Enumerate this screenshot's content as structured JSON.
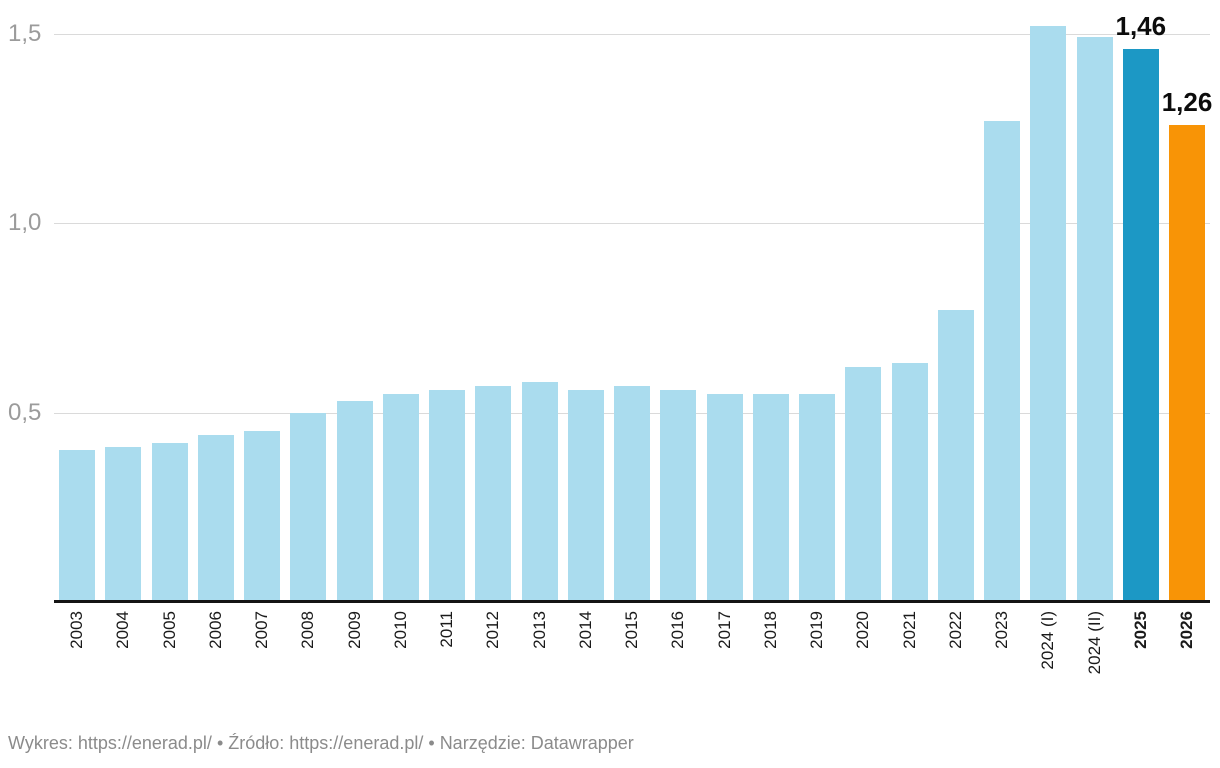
{
  "chart_data": {
    "type": "bar",
    "title": "",
    "xlabel": "",
    "ylabel": "",
    "categories": [
      "2003",
      "2004",
      "2005",
      "2006",
      "2007",
      "2008",
      "2009",
      "2010",
      "2011",
      "2012",
      "2013",
      "2014",
      "2015",
      "2016",
      "2017",
      "2018",
      "2019",
      "2020",
      "2021",
      "2022",
      "2023",
      "2024 (I)",
      "2024 (II)",
      "2025",
      "2026"
    ],
    "values": [
      0.4,
      0.41,
      0.42,
      0.44,
      0.45,
      0.5,
      0.53,
      0.55,
      0.56,
      0.57,
      0.58,
      0.56,
      0.57,
      0.56,
      0.55,
      0.55,
      0.55,
      0.62,
      0.63,
      0.77,
      1.27,
      1.52,
      1.49,
      1.46,
      1.26
    ],
    "y_ticks": [
      {
        "value": 0.5,
        "label": "0,5"
      },
      {
        "value": 1.0,
        "label": "1,0"
      },
      {
        "value": 1.5,
        "label": "1,5"
      }
    ],
    "ylim": [
      0,
      1.59
    ],
    "grid": true,
    "legend": "none",
    "default_bar_color": "#aadcee",
    "bar_color_overrides": {
      "2025": "#1c98c5",
      "2026": "#f89406"
    },
    "bold_categories": [
      "2025",
      "2026"
    ],
    "value_labels": [
      {
        "category": "2025",
        "text": "1,46"
      },
      {
        "category": "2026",
        "text": "1,26"
      }
    ]
  },
  "colors": {
    "background": "#ffffff",
    "gridline": "#dadada",
    "axis_line": "#141414",
    "y_tick_text": "#9b9b9b",
    "x_tick_text": "#1a1a1a",
    "value_label_text": "#0c0c0c",
    "footer_text": "#8b8b8b",
    "bar_default": "#aadcee",
    "bar_2025": "#1c98c5",
    "bar_2026": "#f89406"
  },
  "footer": {
    "chart_prefix": "Wykres: ",
    "chart_link": "https://enerad.pl/",
    "separator1": " • ",
    "source_prefix": "Źródło: ",
    "source_link": "https://enerad.pl/",
    "separator2": " • ",
    "tool_prefix": "Narzędzie: ",
    "tool_name": "Datawrapper"
  }
}
